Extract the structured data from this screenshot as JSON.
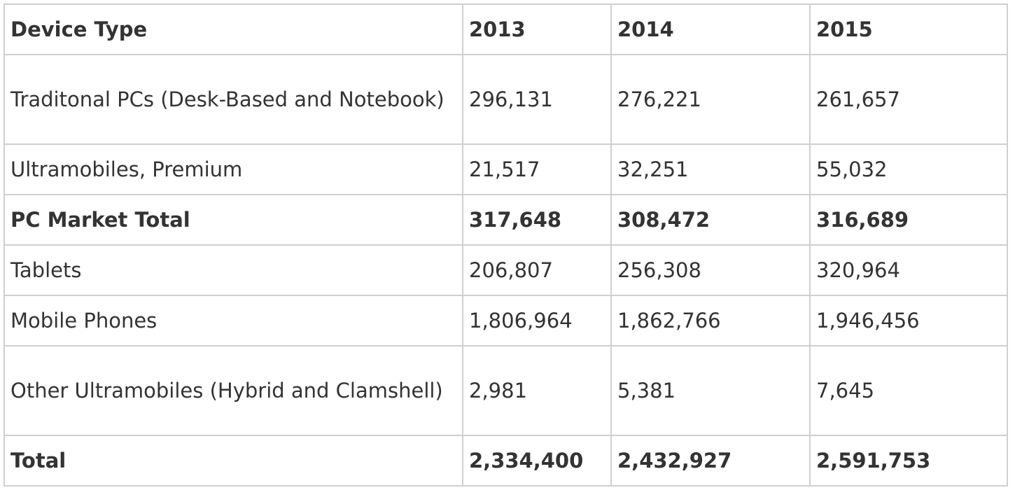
{
  "table": {
    "header": {
      "cells": [
        "Device Type",
        "2013",
        "2014",
        "2015"
      ],
      "bold": true
    },
    "rows": [
      {
        "cells": [
          "Traditonal PCs (Desk-Based and Notebook)",
          "296,131",
          "276,221",
          "261,657"
        ],
        "bold": false
      },
      {
        "cells": [
          "Ultramobiles, Premium",
          "21,517",
          "32,251",
          "55,032"
        ],
        "bold": false
      },
      {
        "cells": [
          "PC Market Total",
          "317,648",
          "308,472",
          "316,689"
        ],
        "bold": true
      },
      {
        "cells": [
          "Tablets",
          "206,807",
          "256,308",
          "320,964"
        ],
        "bold": false
      },
      {
        "cells": [
          "Mobile Phones",
          "1,806,964",
          "1,862,766",
          "1,946,456"
        ],
        "bold": false
      },
      {
        "cells": [
          "Other Ultramobiles (Hybrid and Clamshell)",
          "2,981",
          "5,381",
          "7,645"
        ],
        "bold": false
      },
      {
        "cells": [
          "Total",
          "2,334,400",
          "2,432,927",
          "2,591,753"
        ],
        "bold": true
      }
    ]
  }
}
